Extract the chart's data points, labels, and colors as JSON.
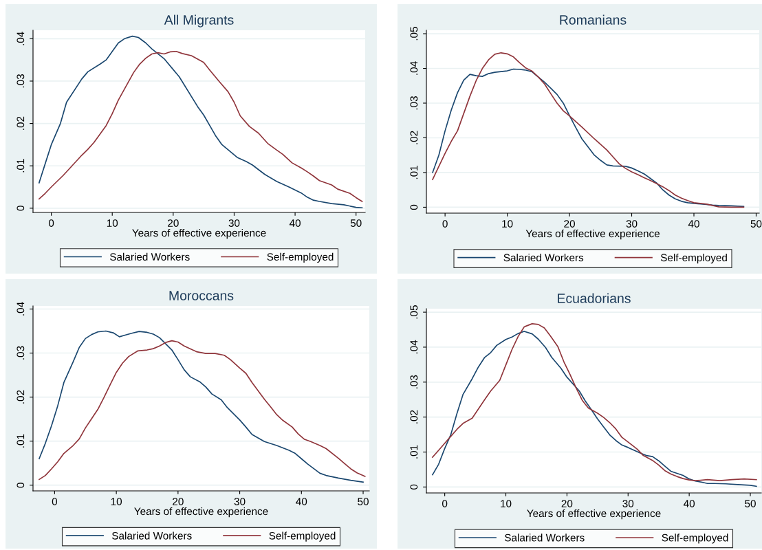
{
  "chart_data": [
    {
      "type": "line",
      "title": "All Migrants",
      "xlabel": "Years of effective experience",
      "xlim": [
        -3,
        51.5
      ],
      "ylim": [
        -0.001,
        0.042
      ],
      "xticks": [
        0,
        10,
        20,
        30,
        40,
        50
      ],
      "yticks": [
        0,
        {
          "value": 0.01,
          "label": ".01"
        },
        {
          "value": 0.02,
          "label": ".02"
        },
        {
          "value": 0.03,
          "label": ".03"
        },
        {
          "value": 0.04,
          "label": ".04"
        }
      ],
      "grid": "y",
      "legend": "bottom",
      "series": [
        {
          "name": "Salaried Workers",
          "color": "#1a476f",
          "x": [
            -2,
            -1,
            0,
            1.5,
            2.5,
            5,
            6,
            8,
            9,
            11,
            12,
            13.3,
            14.3,
            15.5,
            16.5,
            18.5,
            21,
            24,
            25,
            26,
            27,
            28,
            30.5,
            32,
            33,
            35,
            37,
            39,
            41,
            42,
            43,
            44,
            46,
            48,
            50,
            51
          ],
          "values": [
            0.006,
            0.0105,
            0.015,
            0.02,
            0.025,
            0.0305,
            0.0322,
            0.034,
            0.035,
            0.039,
            0.04,
            0.0406,
            0.0403,
            0.039,
            0.0376,
            0.0353,
            0.031,
            0.024,
            0.022,
            0.0195,
            0.017,
            0.015,
            0.012,
            0.011,
            0.0102,
            0.008,
            0.0063,
            0.005,
            0.0036,
            0.0026,
            0.0019,
            0.0016,
            0.0011,
            0.0008,
            0.0002,
            0.0001
          ]
        },
        {
          "name": "Self-employed",
          "color": "#90353b",
          "x": [
            -2,
            -1,
            0,
            2,
            5,
            6,
            7,
            9,
            10,
            11,
            13.5,
            14.5,
            15.5,
            16.5,
            17.5,
            18.5,
            19.5,
            20.5,
            21.5,
            23,
            25,
            26,
            27.5,
            29,
            30,
            31,
            32.5,
            34,
            35.5,
            37,
            38,
            39.5,
            41,
            42,
            43,
            44,
            46,
            47,
            49,
            50,
            51
          ],
          "values": [
            0.0022,
            0.0035,
            0.005,
            0.0078,
            0.0125,
            0.0139,
            0.0155,
            0.0195,
            0.0223,
            0.0255,
            0.032,
            0.034,
            0.0354,
            0.0364,
            0.0367,
            0.0364,
            0.0369,
            0.037,
            0.0365,
            0.036,
            0.0344,
            0.0326,
            0.03,
            0.0275,
            0.025,
            0.0218,
            0.0193,
            0.0177,
            0.0153,
            0.0137,
            0.0127,
            0.0107,
            0.0095,
            0.0086,
            0.0076,
            0.0065,
            0.0055,
            0.0045,
            0.0035,
            0.0025,
            0.0016
          ]
        }
      ]
    },
    {
      "type": "line",
      "title": "Romanians",
      "xlabel": "Years of effective experience",
      "xlim": [
        -3,
        50.5
      ],
      "ylim": [
        -0.0017,
        0.051
      ],
      "xticks": [
        0,
        10,
        20,
        30,
        40,
        50
      ],
      "yticks": [
        0,
        {
          "value": 0.01,
          "label": ".01"
        },
        {
          "value": 0.02,
          "label": ".02"
        },
        {
          "value": 0.03,
          "label": ".03"
        },
        {
          "value": 0.04,
          "label": ".04"
        },
        {
          "value": 0.05,
          "label": ".05"
        }
      ],
      "grid": "y",
      "legend": "bottom",
      "series": [
        {
          "name": "Salaried Workers",
          "color": "#1a476f",
          "x": [
            -2,
            -1,
            0,
            1,
            2,
            3,
            4,
            5,
            6,
            7,
            8,
            10,
            11,
            12,
            13,
            14,
            16,
            17,
            18,
            19,
            20,
            21,
            22,
            24,
            25,
            26,
            27,
            29,
            30,
            31,
            32,
            33,
            34,
            35,
            36,
            37,
            38,
            39,
            40,
            42,
            43,
            44,
            46,
            48
          ],
          "values": [
            0.01,
            0.015,
            0.022,
            0.028,
            0.033,
            0.0366,
            0.0383,
            0.0379,
            0.0377,
            0.0385,
            0.0389,
            0.0393,
            0.0398,
            0.0397,
            0.0395,
            0.039,
            0.036,
            0.0343,
            0.0325,
            0.03,
            0.0264,
            0.023,
            0.0197,
            0.015,
            0.0135,
            0.0122,
            0.0119,
            0.0118,
            0.0113,
            0.0105,
            0.0096,
            0.0083,
            0.007,
            0.005,
            0.0035,
            0.0024,
            0.0017,
            0.0013,
            0.0011,
            0.0008,
            0.0006,
            0.0005,
            0.0004,
            0.0002
          ]
        },
        {
          "name": "Self-employed",
          "color": "#90353b",
          "x": [
            -2,
            0,
            1,
            2,
            3,
            4,
            5,
            6,
            7,
            8,
            9,
            10,
            11,
            12,
            13,
            14,
            15,
            16,
            17,
            18,
            19,
            20,
            22,
            24,
            26,
            27,
            28,
            29,
            30,
            31,
            32,
            33,
            34,
            35,
            36,
            37,
            38,
            39,
            40,
            42,
            43,
            44,
            46,
            48
          ],
          "values": [
            0.008,
            0.0155,
            0.019,
            0.022,
            0.027,
            0.032,
            0.0365,
            0.04,
            0.0425,
            0.0441,
            0.0445,
            0.0442,
            0.0433,
            0.0416,
            0.0401,
            0.0392,
            0.0375,
            0.0355,
            0.0327,
            0.03,
            0.0278,
            0.0263,
            0.0231,
            0.0197,
            0.0165,
            0.0145,
            0.0125,
            0.0112,
            0.0102,
            0.0094,
            0.0085,
            0.0077,
            0.0068,
            0.0059,
            0.0048,
            0.0035,
            0.0026,
            0.0019,
            0.0013,
            0.0009,
            0.0005,
            0.0001,
            0,
            0
          ]
        }
      ]
    },
    {
      "type": "line",
      "title": "Moroccans",
      "xlabel": "Years of effective experience",
      "xlim": [
        -3.5,
        51
      ],
      "ylim": [
        -0.0013,
        0.0407
      ],
      "xticks": [
        0,
        10,
        20,
        30,
        40,
        50
      ],
      "yticks": [
        0,
        {
          "value": 0.01,
          "label": ".01"
        },
        {
          "value": 0.02,
          "label": ".02"
        },
        {
          "value": 0.03,
          "label": ".03"
        },
        {
          "value": 0.04,
          "label": ".04"
        }
      ],
      "grid": "y",
      "legend": "bottom",
      "series": [
        {
          "name": "Salaried Workers",
          "color": "#1a476f",
          "x": [
            -2.5,
            -1.5,
            -0.5,
            0.5,
            1.5,
            3,
            4,
            5,
            6,
            7,
            8.3,
            9.5,
            10.5,
            11.5,
            12.5,
            13.7,
            15,
            16,
            17,
            19,
            20,
            21,
            22,
            23.5,
            24.5,
            25.5,
            27,
            28,
            30,
            31,
            32,
            34,
            36,
            38,
            39,
            40,
            41,
            43,
            44,
            46,
            48,
            50
          ],
          "values": [
            0.006,
            0.0095,
            0.0135,
            0.018,
            0.0233,
            0.028,
            0.0313,
            0.0333,
            0.0342,
            0.0348,
            0.035,
            0.0346,
            0.0337,
            0.0341,
            0.0345,
            0.0349,
            0.0347,
            0.0343,
            0.0335,
            0.0307,
            0.0285,
            0.0262,
            0.0246,
            0.0235,
            0.0223,
            0.0207,
            0.0194,
            0.0176,
            0.0148,
            0.0132,
            0.0115,
            0.0099,
            0.009,
            0.0079,
            0.0072,
            0.006,
            0.0048,
            0.0027,
            0.0022,
            0.0016,
            0.0011,
            0.0007
          ]
        },
        {
          "name": "Self-employed",
          "color": "#90353b",
          "x": [
            -2.5,
            -1.5,
            -0.5,
            0.5,
            1.5,
            3,
            4,
            5,
            6,
            7,
            8,
            9,
            10,
            11,
            12,
            13.5,
            15,
            16,
            17,
            18,
            19,
            20,
            21,
            23,
            24.5,
            26,
            27.5,
            28.5,
            30,
            31,
            32,
            34,
            35,
            36,
            37,
            38.5,
            39.5,
            40.5,
            41.5,
            43,
            44,
            46,
            47,
            48,
            49,
            50.3
          ],
          "values": [
            0.0013,
            0.0022,
            0.0037,
            0.0053,
            0.0072,
            0.009,
            0.0105,
            0.013,
            0.0151,
            0.0172,
            0.0199,
            0.0228,
            0.0256,
            0.0277,
            0.0292,
            0.0305,
            0.0307,
            0.031,
            0.0316,
            0.0324,
            0.0328,
            0.0325,
            0.0316,
            0.0303,
            0.0299,
            0.0299,
            0.0295,
            0.0285,
            0.0266,
            0.0254,
            0.0233,
            0.0195,
            0.0178,
            0.016,
            0.0147,
            0.0132,
            0.0116,
            0.0104,
            0.0099,
            0.009,
            0.0083,
            0.0061,
            0.0049,
            0.0037,
            0.0028,
            0.002
          ]
        }
      ]
    },
    {
      "type": "line",
      "title": "Ecuadorians",
      "xlabel": "Years of effective experience",
      "xlim": [
        -3,
        51.8
      ],
      "ylim": [
        -0.0017,
        0.051
      ],
      "xticks": [
        0,
        10,
        20,
        30,
        40,
        50
      ],
      "yticks": [
        0,
        {
          "value": 0.01,
          "label": ".01"
        },
        {
          "value": 0.02,
          "label": ".02"
        },
        {
          "value": 0.03,
          "label": ".03"
        },
        {
          "value": 0.04,
          "label": ".04"
        },
        {
          "value": 0.05,
          "label": ".05"
        }
      ],
      "grid": "y",
      "legend": "bottom",
      "series": [
        {
          "name": "Salaried Workers",
          "color": "#1a476f",
          "x": [
            -2,
            -1,
            0,
            1,
            2,
            3,
            4.5,
            5.5,
            6.5,
            7.5,
            8.5,
            10,
            11,
            12,
            13,
            14.3,
            15.3,
            16.5,
            17.5,
            19,
            20,
            22,
            23,
            24,
            25,
            26,
            27,
            28,
            29,
            30,
            31,
            32,
            33,
            34,
            35,
            36,
            37,
            39,
            40,
            41,
            42,
            43,
            44,
            46,
            48,
            50,
            51
          ],
          "values": [
            0.0035,
            0.0065,
            0.011,
            0.015,
            0.021,
            0.0265,
            0.031,
            0.0343,
            0.037,
            0.0384,
            0.0405,
            0.0422,
            0.0429,
            0.0439,
            0.0445,
            0.0438,
            0.0423,
            0.0399,
            0.0371,
            0.034,
            0.0314,
            0.0275,
            0.0246,
            0.0221,
            0.0195,
            0.0172,
            0.0149,
            0.0133,
            0.012,
            0.0113,
            0.0105,
            0.0097,
            0.009,
            0.0087,
            0.0075,
            0.006,
            0.0045,
            0.0033,
            0.0023,
            0.0017,
            0.0014,
            0.001,
            0.001,
            0.0009,
            0.0007,
            0.0005,
            0.0002
          ]
        },
        {
          "name": "Self-employed",
          "color": "#90353b",
          "x": [
            -2,
            -1,
            0,
            1,
            2,
            3,
            4.5,
            5.5,
            6.5,
            7.5,
            9,
            10,
            11,
            12,
            13,
            14.3,
            15.3,
            16.3,
            17.3,
            18.5,
            19.5,
            20.5,
            21.5,
            22.5,
            23.5,
            25,
            26,
            27,
            28,
            29,
            30.5,
            31.5,
            32.5,
            34,
            35,
            36,
            37,
            38,
            39,
            40,
            41,
            43,
            45,
            47,
            49,
            51
          ],
          "values": [
            0.0085,
            0.0105,
            0.0125,
            0.0145,
            0.0165,
            0.0182,
            0.0197,
            0.0223,
            0.0249,
            0.0274,
            0.0305,
            0.0349,
            0.0393,
            0.043,
            0.0458,
            0.0467,
            0.0465,
            0.0455,
            0.0432,
            0.0402,
            0.0358,
            0.0322,
            0.0283,
            0.0248,
            0.0226,
            0.0211,
            0.0199,
            0.0184,
            0.0166,
            0.0142,
            0.0122,
            0.0108,
            0.009,
            0.0076,
            0.0063,
            0.0047,
            0.0037,
            0.003,
            0.0024,
            0.002,
            0.0018,
            0.0021,
            0.0018,
            0.0021,
            0.0023,
            0.0021
          ]
        }
      ]
    }
  ]
}
